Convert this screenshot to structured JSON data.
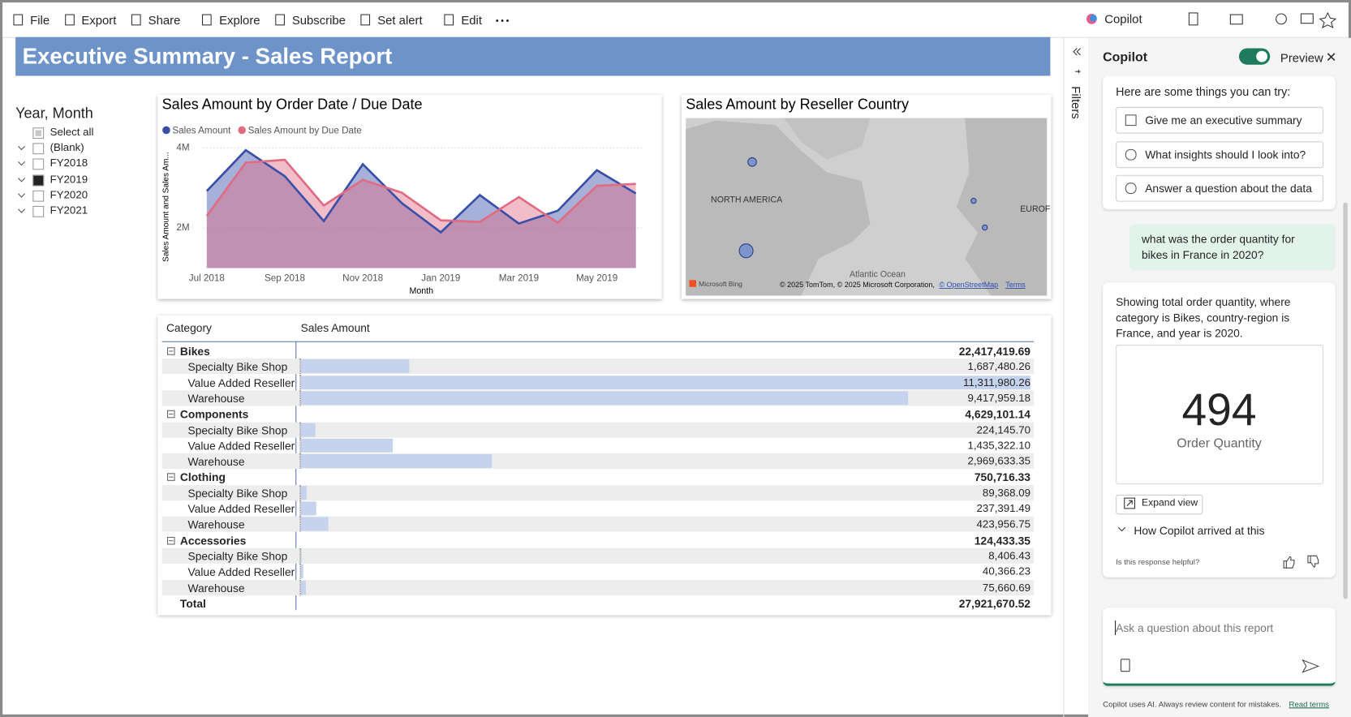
{
  "toolbar": {
    "items": [
      "File",
      "Export",
      "Share",
      "Explore",
      "Subscribe",
      "Set alert",
      "Edit"
    ],
    "copilot": "Copilot"
  },
  "report": {
    "title": "Executive Summary - Sales Report"
  },
  "slicer": {
    "title": "Year, Month",
    "items": [
      "Select all",
      "(Blank)",
      "FY2018",
      "FY2019",
      "FY2020",
      "FY2021"
    ],
    "states": [
      "partial",
      "none",
      "none",
      "checked",
      "none",
      "none"
    ]
  },
  "chart_data": {
    "type": "area",
    "title": "Sales Amount by Order Date / Due Date",
    "x_label": "Month",
    "y_label": "Sales Amount and Sales Am...",
    "categories": [
      "Jul 2018",
      null,
      "Sep 2018",
      null,
      "Nov 2018",
      null,
      "Jan 2019",
      null,
      "Mar 2019",
      null,
      "May 2019",
      null
    ],
    "series": [
      {
        "name": "Sales Amount",
        "color": "#3a4fa8",
        "values": [
          2920000,
          3940000,
          3290000,
          2170000,
          3590000,
          2620000,
          1890000,
          2820000,
          2110000,
          2430000,
          3440000,
          2860000
        ]
      },
      {
        "name": "Sales Amount by Due Date",
        "color": "#e06c84",
        "values": [
          2300000,
          3630000,
          3700000,
          2560000,
          3200000,
          2880000,
          2190000,
          2150000,
          2770000,
          2130000,
          3050000,
          3100000
        ]
      }
    ],
    "ylim": [
      1000000,
      4150000
    ],
    "yticks": [
      {
        "value": 2000000,
        "label": "2M"
      },
      {
        "value": 4000000,
        "label": "4M"
      }
    ],
    "grid": true
  },
  "map": {
    "title": "Sales Amount by Reseller Country",
    "labels": [
      "NORTH AMERICA",
      "EUROF",
      "Atlantic Ocean"
    ],
    "brand": "Microsoft Bing",
    "attribution": "© 2025 TomTom, © 2025 Microsoft Corporation,",
    "osm": "© OpenStreetMap",
    "terms": "Terms"
  },
  "matrix": {
    "headers": [
      "Category",
      "Sales Amount"
    ],
    "groups": [
      {
        "name": "Bikes",
        "total": {
          "value": 22417419.69,
          "label": "22,417,419.69"
        },
        "rows": [
          {
            "name": "Specialty Bike Shop",
            "value": 1687480.26,
            "label": "1,687,480.26"
          },
          {
            "name": "Value Added Reseller",
            "value": 11311980.26,
            "label": "11,311,980.26"
          },
          {
            "name": "Warehouse",
            "value": 9417959.18,
            "label": "9,417,959.18"
          }
        ]
      },
      {
        "name": "Components",
        "total": {
          "value": 4629101.14,
          "label": "4,629,101.14"
        },
        "rows": [
          {
            "name": "Specialty Bike Shop",
            "value": 224145.7,
            "label": "224,145.70"
          },
          {
            "name": "Value Added Reseller",
            "value": 1435322.1,
            "label": "1,435,322.10"
          },
          {
            "name": "Warehouse",
            "value": 2969633.35,
            "label": "2,969,633.35"
          }
        ]
      },
      {
        "name": "Clothing",
        "total": {
          "value": 750716.33,
          "label": "750,716.33"
        },
        "rows": [
          {
            "name": "Specialty Bike Shop",
            "value": 89368.09,
            "label": "89,368.09"
          },
          {
            "name": "Value Added Reseller",
            "value": 237391.49,
            "label": "237,391.49"
          },
          {
            "name": "Warehouse",
            "value": 423956.75,
            "label": "423,956.75"
          }
        ]
      },
      {
        "name": "Accessories",
        "total": {
          "value": 124433.35,
          "label": "124,433.35"
        },
        "rows": [
          {
            "name": "Specialty Bike Shop",
            "value": 8406.43,
            "label": "8,406.43"
          },
          {
            "name": "Value Added Reseller",
            "value": 40366.23,
            "label": "40,366.23"
          },
          {
            "name": "Warehouse",
            "value": 75660.69,
            "label": "75,660.69"
          }
        ]
      }
    ],
    "total": {
      "name": "Total",
      "value": 27921670.52,
      "label": "27,921,670.52"
    }
  },
  "filters": "Filters",
  "copilot": {
    "title": "Copilot",
    "preview": "Preview",
    "intro": "Here are some things you can try:",
    "suggestions": [
      "Give me an executive summary",
      "What insights should I look into?",
      "Answer a question about the data"
    ],
    "question": "what was the order quantity for bikes in France in 2020?",
    "answer": "Showing total order quantity, where category is Bikes, country-region is France, and year is 2020.",
    "card": {
      "value": 494,
      "label": "Order Quantity"
    },
    "expand": "Expand view",
    "how": "How Copilot arrived at this",
    "helpful": "Is this response helpful?",
    "placeholder": "Ask a question about this report",
    "disclaimer": "Copilot uses AI. Always review content for mistakes.",
    "terms": "Read terms"
  }
}
